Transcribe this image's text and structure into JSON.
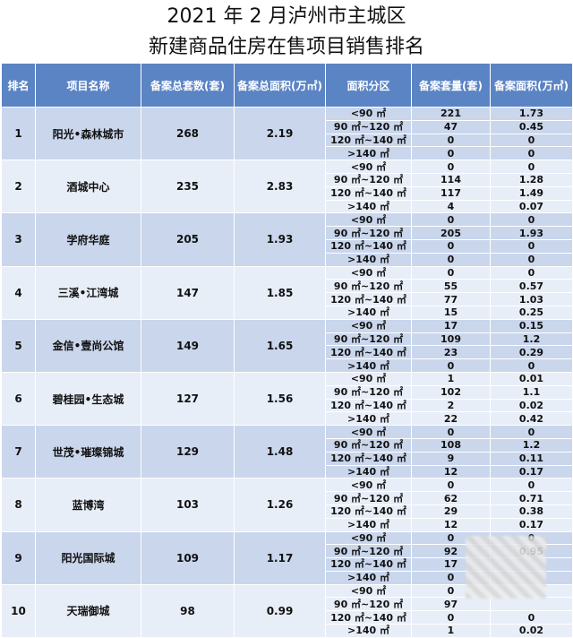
{
  "title": {
    "line1": "2021 年 2 月泸州市主城区",
    "line2": "新建商品住房在售项目销售排名"
  },
  "headers": [
    "排名",
    "项目名称",
    "备案总套数(套)",
    "备案总面积(万㎡)",
    "面积分区",
    "备案套量(套)",
    "备案面积(万㎡)"
  ],
  "area_labels": [
    "<90 ㎡",
    "90 ㎡~120 ㎡",
    "120 ㎡~140 ㎡",
    ">140 ㎡"
  ],
  "projects": [
    {
      "rank": "1",
      "name": "阳光•森林城市",
      "units": "268",
      "area": "2.19",
      "breakdown": [
        [
          "221",
          "1.73"
        ],
        [
          "47",
          "0.45"
        ],
        [
          "0",
          "0"
        ],
        [
          "0",
          "0"
        ]
      ]
    },
    {
      "rank": "2",
      "name": "酒城中心",
      "units": "235",
      "area": "2.83",
      "breakdown": [
        [
          "0",
          "0"
        ],
        [
          "114",
          "1.28"
        ],
        [
          "117",
          "1.49"
        ],
        [
          "4",
          "0.07"
        ]
      ]
    },
    {
      "rank": "3",
      "name": "学府华庭",
      "units": "205",
      "area": "1.93",
      "breakdown": [
        [
          "0",
          "0"
        ],
        [
          "205",
          "1.93"
        ],
        [
          "0",
          "0"
        ],
        [
          "0",
          "0"
        ]
      ]
    },
    {
      "rank": "4",
      "name": "三溪•江湾城",
      "units": "147",
      "area": "1.85",
      "breakdown": [
        [
          "0",
          "0"
        ],
        [
          "55",
          "0.57"
        ],
        [
          "77",
          "1.03"
        ],
        [
          "15",
          "0.25"
        ]
      ]
    },
    {
      "rank": "5",
      "name": "金信•壹尚公馆",
      "units": "149",
      "area": "1.65",
      "breakdown": [
        [
          "17",
          "0.15"
        ],
        [
          "109",
          "1.2"
        ],
        [
          "23",
          "0.29"
        ],
        [
          "0",
          "0"
        ]
      ]
    },
    {
      "rank": "6",
      "name": "碧桂园•生态城",
      "units": "127",
      "area": "1.56",
      "breakdown": [
        [
          "1",
          "0.01"
        ],
        [
          "102",
          "1.1"
        ],
        [
          "2",
          "0.02"
        ],
        [
          "22",
          "0.42"
        ]
      ]
    },
    {
      "rank": "7",
      "name": "世茂•璀璨锦城",
      "units": "129",
      "area": "1.48",
      "breakdown": [
        [
          "0",
          "0"
        ],
        [
          "108",
          "1.2"
        ],
        [
          "9",
          "0.11"
        ],
        [
          "12",
          "0.17"
        ]
      ]
    },
    {
      "rank": "8",
      "name": "蓝博湾",
      "units": "103",
      "area": "1.26",
      "breakdown": [
        [
          "0",
          "0"
        ],
        [
          "62",
          "0.71"
        ],
        [
          "29",
          "0.38"
        ],
        [
          "12",
          "0.17"
        ]
      ]
    },
    {
      "rank": "9",
      "name": "阳光国际城",
      "units": "109",
      "area": "1.17",
      "breakdown": [
        [
          "0",
          "0"
        ],
        [
          "92",
          "0.95"
        ],
        [
          "17",
          ""
        ],
        [
          "0",
          ""
        ]
      ]
    },
    {
      "rank": "10",
      "name": "天瑞御城",
      "units": "98",
      "area": "0.99",
      "breakdown": [
        [
          "0",
          ""
        ],
        [
          "97",
          ""
        ],
        [
          "0",
          "0"
        ],
        [
          "1",
          "0.02"
        ]
      ]
    }
  ],
  "colors": {
    "header": "#5b84c4",
    "row_blue": "#c9d6ec",
    "row_light": "#e8eef8"
  }
}
